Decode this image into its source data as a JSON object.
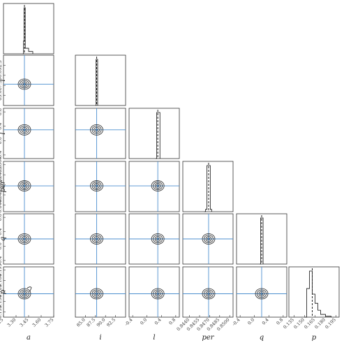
{
  "chart_data": {
    "type": "corner",
    "title": "",
    "parameters": [
      {
        "name": "a",
        "label": "a",
        "range": [
          3.15,
          3.75
        ],
        "ticks": [
          "3.15",
          "3.30",
          "3.45",
          "3.60",
          "3.75"
        ],
        "tick_values": [
          3.15,
          3.3,
          3.45,
          3.6,
          3.75
        ],
        "truth": 3.4,
        "median": 3.4,
        "hist": [
          [
            3.38,
            0
          ],
          [
            3.39,
            0.28
          ],
          [
            3.395,
            1.0
          ],
          [
            3.41,
            0.12
          ],
          [
            3.45,
            0.05
          ],
          [
            3.5,
            0
          ]
        ]
      },
      {
        "name": "i",
        "label": "i",
        "range": [
          82.5,
          95.0
        ],
        "ticks": [
          "85.0",
          "87.5",
          "90.0",
          "92.5"
        ],
        "tick_values": [
          85.0,
          87.5,
          90.0,
          92.5
        ],
        "truth": 87.8,
        "median": 87.8,
        "hist": [
          [
            87.55,
            0
          ],
          [
            87.65,
            1.0
          ],
          [
            88.05,
            0
          ]
        ]
      },
      {
        "name": "l",
        "label": "l",
        "range": [
          -0.5,
          0.9
        ],
        "ticks": [
          "-0.4",
          "0.0",
          "0.4",
          "0.8"
        ],
        "tick_values": [
          -0.4,
          0.0,
          0.4,
          0.8
        ],
        "truth": 0.3,
        "median": 0.3,
        "hist": [
          [
            0.24,
            0
          ],
          [
            0.27,
            1.0
          ],
          [
            0.36,
            0
          ]
        ]
      },
      {
        "name": "per",
        "label": "per",
        "range": [
          0.843,
          0.8505
        ],
        "ticks": [
          "0.8440",
          "0.8455",
          "0.8470",
          "0.8485",
          "0.8500"
        ],
        "tick_values": [
          0.844,
          0.8455,
          0.847,
          0.8485,
          0.85
        ],
        "truth": 0.84685,
        "median": 0.84685,
        "hist": [
          [
            0.8462,
            0
          ],
          [
            0.8464,
            0.05
          ],
          [
            0.8466,
            1.0
          ],
          [
            0.8471,
            0.05
          ],
          [
            0.8473,
            0
          ]
        ]
      },
      {
        "name": "q",
        "label": "q",
        "range": [
          -0.5,
          0.9
        ],
        "ticks": [
          "-0.4",
          "0.0",
          "0.4",
          "0.8"
        ],
        "tick_values": [
          -0.4,
          0.0,
          0.4,
          0.8
        ],
        "truth": 0.2,
        "median": 0.2,
        "hist": [
          [
            0.15,
            0
          ],
          [
            0.17,
            1.0
          ],
          [
            0.24,
            0
          ]
        ]
      },
      {
        "name": "p",
        "label": "p",
        "range": [
          0.1275,
          0.1995
        ],
        "ticks": [
          "0.135",
          "0.150",
          "0.165",
          "0.180",
          "0.195"
        ],
        "tick_values": [
          0.135,
          0.15,
          0.165,
          0.18,
          0.195
        ],
        "truth": 0.161,
        "median": 0.161,
        "hist": [
          [
            0.15,
            0
          ],
          [
            0.153,
            0.62
          ],
          [
            0.157,
            1.0
          ],
          [
            0.161,
            0.5
          ],
          [
            0.165,
            0.3
          ],
          [
            0.169,
            0.15
          ],
          [
            0.173,
            0.06
          ],
          [
            0.18,
            0.02
          ],
          [
            0.188,
            0
          ]
        ]
      }
    ],
    "colors": {
      "truth": "#4c8fcf",
      "contour": "#222222",
      "median": "#222222",
      "frame": "#333333",
      "histogram": "#111111"
    }
  }
}
